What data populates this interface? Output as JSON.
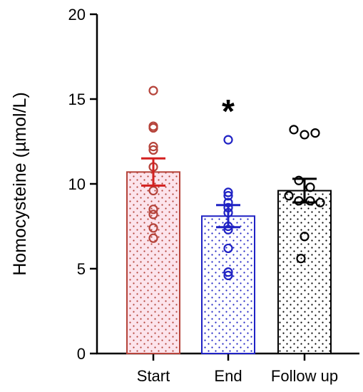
{
  "chart_data": {
    "type": "bar",
    "ylabel": "Homocysteine (µmol/L)",
    "xlabel": "",
    "title": "",
    "ylim": [
      0,
      20
    ],
    "yticks": [
      0,
      5,
      10,
      15,
      20
    ],
    "grid": false,
    "legend": "none",
    "categories": [
      "Start",
      "End",
      "Follow up"
    ],
    "values": [
      10.7,
      8.1,
      9.6
    ],
    "sem": [
      0.8,
      0.65,
      0.7
    ],
    "significance": [
      "",
      "*",
      ""
    ],
    "colors": [
      "#b5433a",
      "#1f22c4",
      "#000000"
    ],
    "fill_colors": [
      "#fce4ec",
      "#ffffff",
      "#ffffff"
    ],
    "error_colors": [
      "#d42020",
      "#1f22c4",
      "#000000"
    ],
    "points": [
      [
        15.5,
        13.4,
        13.3,
        12.2,
        12.0,
        11.0,
        9.6,
        8.5,
        8.2,
        7.4,
        6.8
      ],
      [
        12.6,
        9.5,
        9.3,
        8.9,
        8.6,
        8.3,
        7.5,
        7.3,
        6.2,
        4.8,
        4.6
      ],
      [
        13.2,
        12.9,
        13.0,
        10.2,
        9.8,
        9.3,
        9.0,
        9.0,
        8.9,
        6.9,
        5.6
      ]
    ]
  }
}
